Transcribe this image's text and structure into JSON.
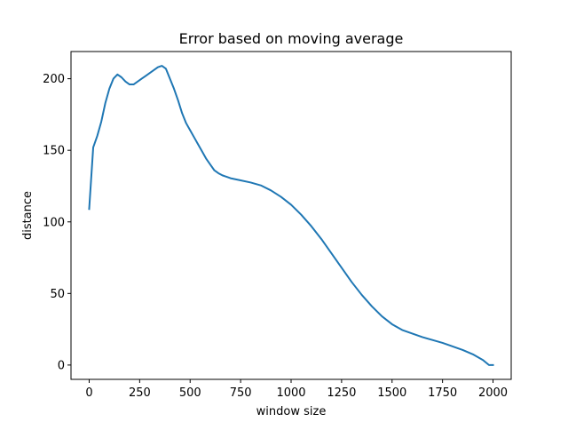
{
  "chart_data": {
    "type": "line",
    "title": "Error based on moving average",
    "xlabel": "window size",
    "ylabel": "distance",
    "xlim": [
      -90,
      2090
    ],
    "ylim": [
      -10,
      219
    ],
    "xticks": [
      0,
      250,
      500,
      750,
      1000,
      1250,
      1500,
      1750,
      2000
    ],
    "yticks": [
      0,
      50,
      100,
      150,
      200
    ],
    "grid": false,
    "line_color": "#1f77b4",
    "series": [
      {
        "x": [
          0,
          20,
          40,
          60,
          80,
          100,
          120,
          140,
          160,
          180,
          200,
          220,
          240,
          260,
          280,
          300,
          320,
          340,
          360,
          380,
          400,
          420,
          440,
          460,
          480,
          500,
          520,
          540,
          560,
          580,
          600,
          620,
          640,
          660,
          680,
          700,
          750,
          800,
          850,
          900,
          950,
          1000,
          1050,
          1100,
          1150,
          1200,
          1250,
          1300,
          1350,
          1400,
          1450,
          1500,
          1550,
          1600,
          1650,
          1700,
          1750,
          1800,
          1850,
          1900,
          1950,
          1980,
          2000
        ],
        "y": [
          109,
          152,
          160,
          170,
          183,
          193,
          200,
          203,
          201,
          198,
          196,
          196,
          198,
          200,
          202,
          204,
          206,
          208,
          209,
          207,
          200,
          193,
          185,
          176,
          169,
          164,
          159,
          154,
          149,
          144,
          140,
          136,
          134,
          132.5,
          131.5,
          130.5,
          129,
          127.5,
          125.5,
          122,
          117.5,
          112,
          105,
          97,
          88,
          78,
          68,
          58,
          49,
          41,
          34,
          28.5,
          24.5,
          22,
          19.5,
          17.5,
          15.5,
          13,
          10.5,
          7.5,
          3.5,
          0,
          0
        ]
      }
    ]
  }
}
